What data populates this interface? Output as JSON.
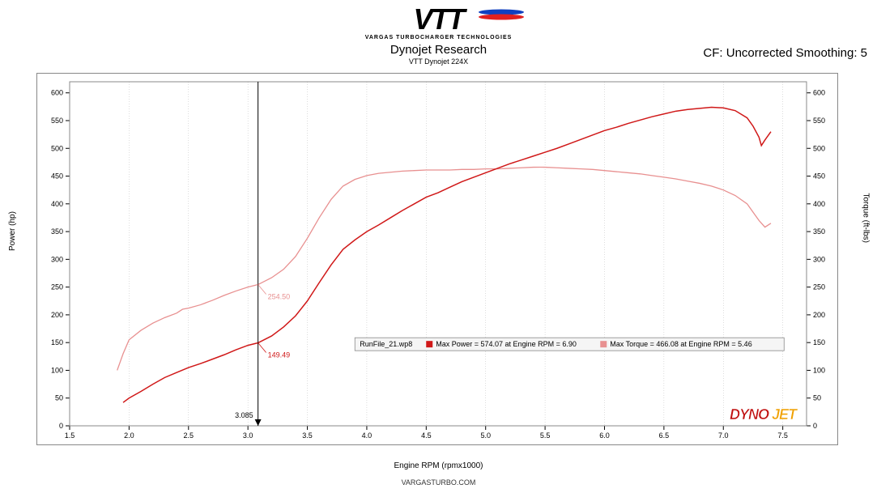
{
  "logo": {
    "main": "VTT",
    "sub": "VARGAS TURBOCHARGER TECHNOLOGIES",
    "color": "#000000",
    "swoosh_red": "#e02020",
    "swoosh_blue": "#1040c0"
  },
  "header": {
    "title": "Dynojet Research",
    "subtitle": "VTT Dynojet 224X",
    "cf_label": "CF: Uncorrected Smoothing: 5"
  },
  "footer": {
    "url": "VARGASTURBO.COM"
  },
  "chart": {
    "type": "line",
    "background_color": "#ffffff",
    "border_color": "#888888",
    "grid_color": "#bbbbbb",
    "x_axis": {
      "label": "Engine RPM (rpmx1000)",
      "min": 1.5,
      "max": 7.7,
      "tick_step": 0.5,
      "ticks": [
        1.5,
        2.0,
        2.5,
        3.0,
        3.5,
        4.0,
        4.5,
        5.0,
        5.5,
        6.0,
        6.5,
        7.0,
        7.5
      ]
    },
    "y_axis_left": {
      "label": "Power (hp)",
      "min": 0,
      "max": 620,
      "ticks": [
        0,
        50,
        100,
        150,
        200,
        250,
        300,
        350,
        400,
        450,
        500,
        550,
        600
      ]
    },
    "y_axis_right": {
      "label": "Torque (ft-lbs)",
      "min": 0,
      "max": 620,
      "ticks": [
        0,
        50,
        100,
        150,
        200,
        250,
        300,
        350,
        400,
        450,
        500,
        550,
        600
      ]
    },
    "cursor": {
      "x": 3.085,
      "label": "3.085",
      "power_value": "149.49",
      "torque_value": "254.50"
    },
    "legend": {
      "runfile": "RunFile_21.wp8",
      "max_power": "Max Power = 574.07 at Engine RPM = 6.90",
      "max_torque": "Max Torque = 466.08 at Engine RPM = 5.46",
      "swatch_power": "#d01818",
      "swatch_torque": "#e89090"
    },
    "series": {
      "power": {
        "color": "#d01818",
        "line_width": 1.5,
        "points": [
          [
            1.95,
            42
          ],
          [
            2.0,
            50
          ],
          [
            2.1,
            62
          ],
          [
            2.2,
            75
          ],
          [
            2.3,
            87
          ],
          [
            2.4,
            96
          ],
          [
            2.5,
            105
          ],
          [
            2.6,
            112
          ],
          [
            2.7,
            120
          ],
          [
            2.8,
            128
          ],
          [
            2.9,
            137
          ],
          [
            3.0,
            145
          ],
          [
            3.085,
            149.49
          ],
          [
            3.2,
            162
          ],
          [
            3.3,
            178
          ],
          [
            3.4,
            198
          ],
          [
            3.5,
            225
          ],
          [
            3.6,
            258
          ],
          [
            3.7,
            290
          ],
          [
            3.8,
            318
          ],
          [
            3.9,
            335
          ],
          [
            4.0,
            350
          ],
          [
            4.1,
            362
          ],
          [
            4.2,
            375
          ],
          [
            4.3,
            388
          ],
          [
            4.4,
            400
          ],
          [
            4.5,
            412
          ],
          [
            4.6,
            420
          ],
          [
            4.7,
            430
          ],
          [
            4.8,
            440
          ],
          [
            4.9,
            448
          ],
          [
            5.0,
            456
          ],
          [
            5.1,
            464
          ],
          [
            5.2,
            472
          ],
          [
            5.3,
            479
          ],
          [
            5.4,
            486
          ],
          [
            5.5,
            493
          ],
          [
            5.6,
            500
          ],
          [
            5.7,
            508
          ],
          [
            5.8,
            516
          ],
          [
            5.9,
            524
          ],
          [
            6.0,
            532
          ],
          [
            6.1,
            538
          ],
          [
            6.2,
            545
          ],
          [
            6.3,
            551
          ],
          [
            6.4,
            557
          ],
          [
            6.5,
            562
          ],
          [
            6.6,
            567
          ],
          [
            6.7,
            570
          ],
          [
            6.8,
            572
          ],
          [
            6.9,
            574
          ],
          [
            7.0,
            573
          ],
          [
            7.1,
            568
          ],
          [
            7.2,
            555
          ],
          [
            7.25,
            540
          ],
          [
            7.3,
            520
          ],
          [
            7.32,
            505
          ],
          [
            7.35,
            515
          ],
          [
            7.4,
            530
          ]
        ]
      },
      "torque": {
        "color": "#e89090",
        "line_width": 1.3,
        "points": [
          [
            1.9,
            100
          ],
          [
            1.95,
            130
          ],
          [
            2.0,
            155
          ],
          [
            2.1,
            172
          ],
          [
            2.2,
            185
          ],
          [
            2.3,
            195
          ],
          [
            2.4,
            203
          ],
          [
            2.45,
            210
          ],
          [
            2.5,
            212
          ],
          [
            2.6,
            218
          ],
          [
            2.7,
            226
          ],
          [
            2.8,
            235
          ],
          [
            2.9,
            243
          ],
          [
            3.0,
            250
          ],
          [
            3.085,
            254.5
          ],
          [
            3.2,
            267
          ],
          [
            3.3,
            282
          ],
          [
            3.4,
            305
          ],
          [
            3.5,
            338
          ],
          [
            3.6,
            375
          ],
          [
            3.7,
            408
          ],
          [
            3.8,
            432
          ],
          [
            3.9,
            444
          ],
          [
            4.0,
            451
          ],
          [
            4.1,
            455
          ],
          [
            4.2,
            457
          ],
          [
            4.3,
            459
          ],
          [
            4.4,
            460
          ],
          [
            4.5,
            461
          ],
          [
            4.6,
            461
          ],
          [
            4.7,
            461
          ],
          [
            4.8,
            462
          ],
          [
            4.9,
            462
          ],
          [
            5.0,
            463
          ],
          [
            5.1,
            463
          ],
          [
            5.2,
            464
          ],
          [
            5.3,
            465
          ],
          [
            5.4,
            466
          ],
          [
            5.46,
            466.08
          ],
          [
            5.5,
            466
          ],
          [
            5.6,
            465
          ],
          [
            5.7,
            464
          ],
          [
            5.8,
            463
          ],
          [
            5.9,
            462
          ],
          [
            6.0,
            460
          ],
          [
            6.1,
            458
          ],
          [
            6.2,
            456
          ],
          [
            6.3,
            454
          ],
          [
            6.4,
            451
          ],
          [
            6.5,
            448
          ],
          [
            6.6,
            445
          ],
          [
            6.7,
            441
          ],
          [
            6.8,
            437
          ],
          [
            6.9,
            432
          ],
          [
            7.0,
            425
          ],
          [
            7.1,
            415
          ],
          [
            7.2,
            400
          ],
          [
            7.25,
            385
          ],
          [
            7.3,
            370
          ],
          [
            7.35,
            358
          ],
          [
            7.4,
            365
          ]
        ]
      }
    },
    "dynojet_logo": {
      "text": "DYNOJET",
      "color_left": "#c01010",
      "color_right": "#f0a000"
    }
  }
}
